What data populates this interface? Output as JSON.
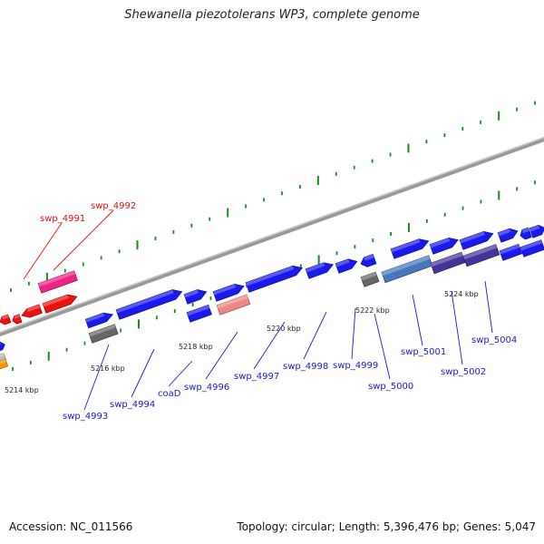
{
  "title": "Shewanella piezotolerans WP3, complete genome",
  "footer": {
    "accession": "Accession: NC_011566",
    "summary": "Topology: circular; Length: 5,396,476 bp; Genes: 5,047"
  },
  "colors": {
    "forward_gene": "#1a1aee",
    "reverse_gene": "#ee1111",
    "highlight_gene": "#ee2288",
    "backbone": "#999999",
    "tick": "#1a8a1a",
    "forward_label": "#1a1acc",
    "reverse_label": "#dd1111",
    "pseudo_gene": "#666666",
    "salmon_gene": "#ee8888",
    "steelblue_gene": "#4477bb",
    "slate_gene": "#443399",
    "orange_gene": "#ff9900"
  },
  "ticks": [
    "5214 kbp",
    "5216 kbp",
    "5218 kbp",
    "5220 kbp",
    "5222 kbp",
    "5224 kbp"
  ],
  "reverse_labels": [
    "swp_4991",
    "swp_4992"
  ],
  "forward_labels": [
    "swp_4993",
    "swp_4994",
    "coaD",
    "swp_4996",
    "swp_4997",
    "swp_4998",
    "swp_4999",
    "swp_5000",
    "swp_5001",
    "swp_5002",
    "swp_5004"
  ]
}
